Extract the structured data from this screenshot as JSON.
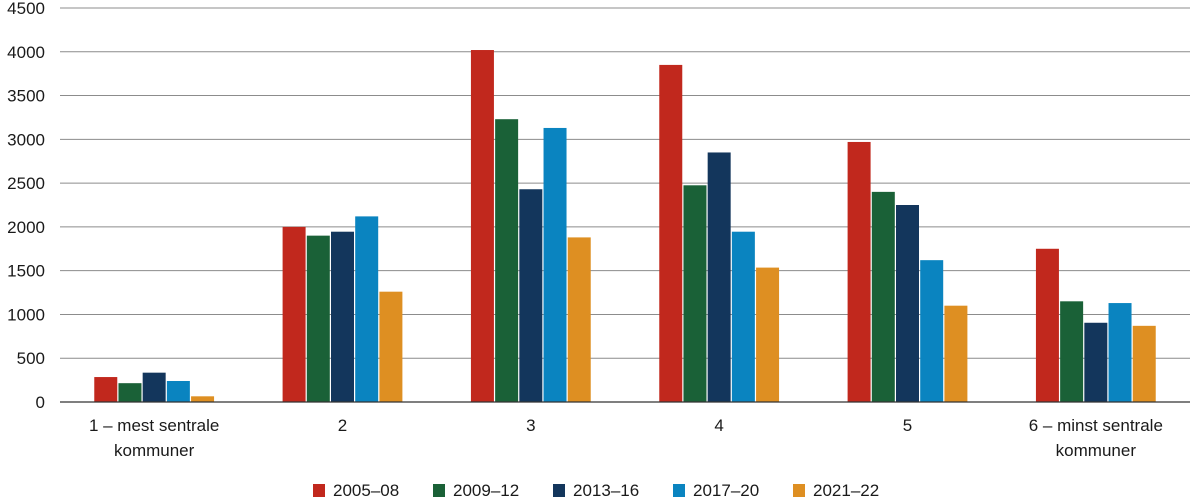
{
  "chart_data": {
    "type": "bar",
    "title": "",
    "xlabel": "",
    "ylabel": "",
    "ylim": [
      0,
      4500
    ],
    "yticks": [
      0,
      500,
      1000,
      1500,
      2000,
      2500,
      3000,
      3500,
      4000,
      4500
    ],
    "grid": true,
    "legend_position": "bottom",
    "categories": [
      [
        "1 – mest sentrale",
        "kommuner"
      ],
      [
        "2"
      ],
      [
        "3"
      ],
      [
        "4"
      ],
      [
        "5"
      ],
      [
        "6 – minst sentrale",
        "kommuner"
      ]
    ],
    "series": [
      {
        "name": "2005–08",
        "color": "#c1281d",
        "values": [
          285,
          2000,
          4020,
          3850,
          2970,
          1750
        ]
      },
      {
        "name": "2009–12",
        "color": "#1a6137",
        "values": [
          215,
          1900,
          3230,
          2475,
          2400,
          1150
        ]
      },
      {
        "name": "2013–16",
        "color": "#13365c",
        "values": [
          335,
          1945,
          2430,
          2850,
          2250,
          905
        ]
      },
      {
        "name": "2017–20",
        "color": "#0a84c0",
        "values": [
          240,
          2120,
          3130,
          1945,
          1620,
          1130
        ]
      },
      {
        "name": "2021–22",
        "color": "#de8f22",
        "values": [
          65,
          1260,
          1880,
          1535,
          1100,
          870
        ]
      }
    ]
  }
}
